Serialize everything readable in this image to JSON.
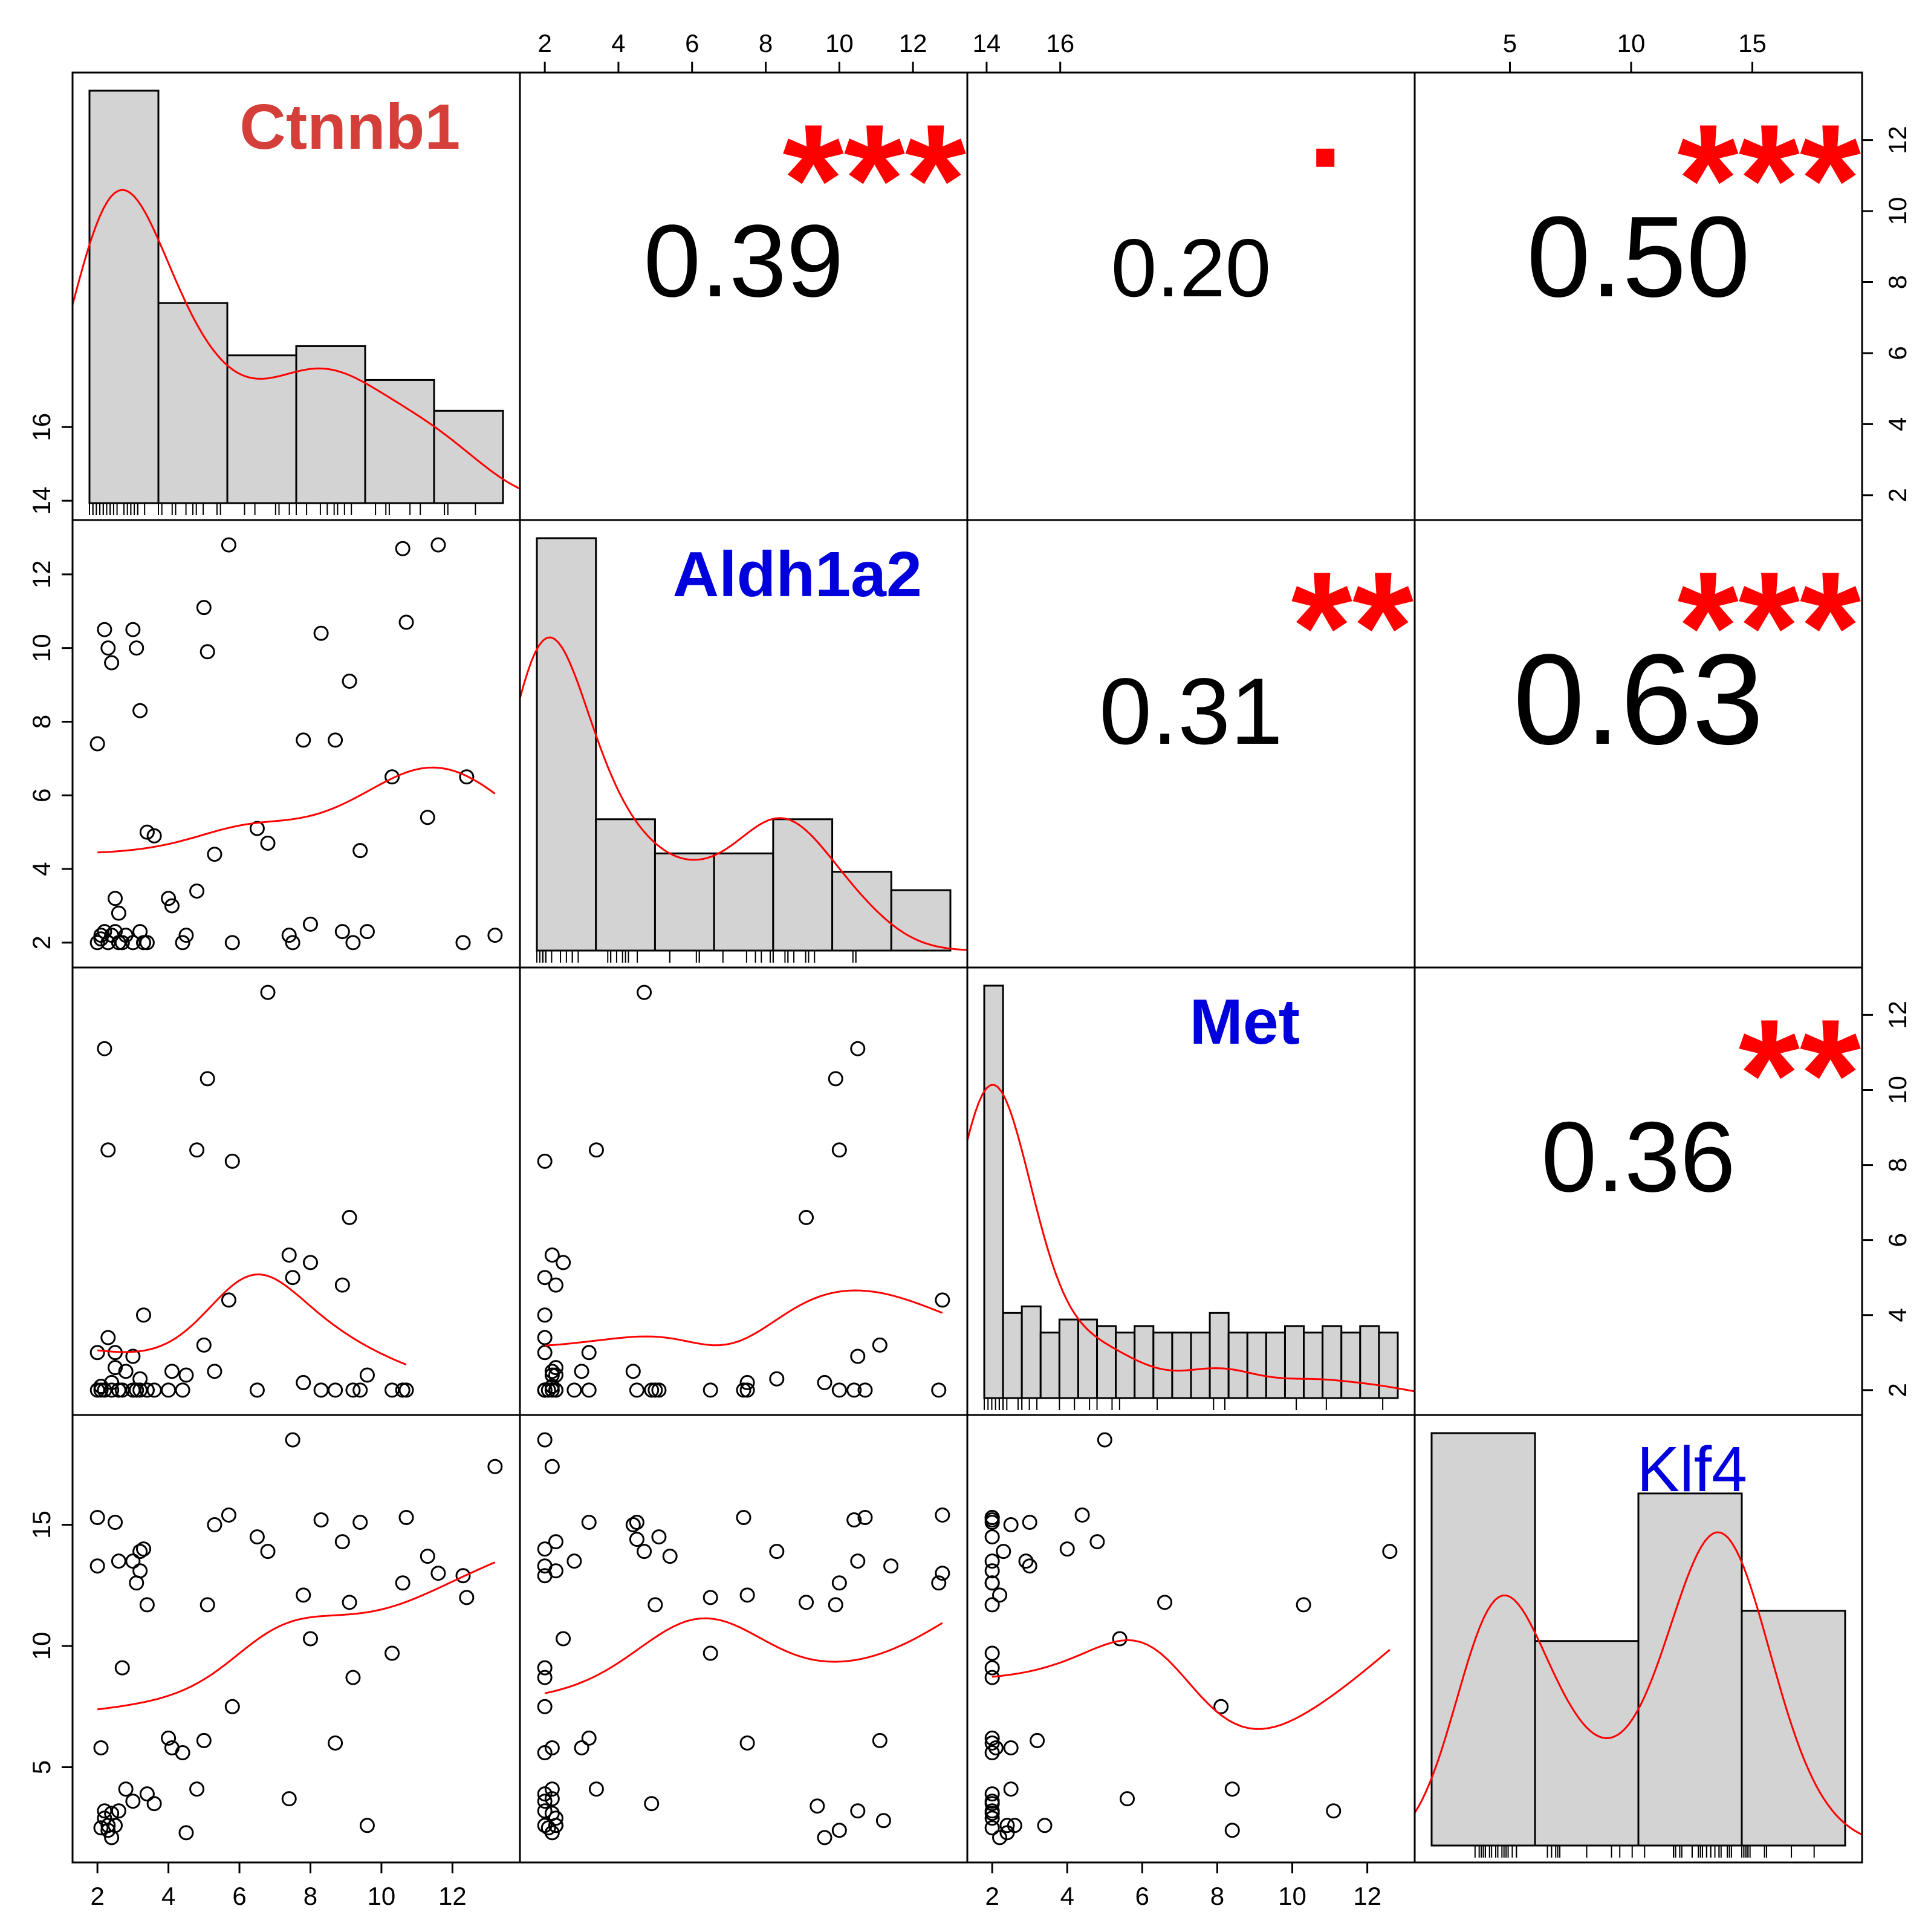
{
  "chart_data": {
    "type": "scatter-matrix",
    "variables": [
      {
        "name": "Ctnnb1",
        "color": "#d43f3a",
        "bold": true
      },
      {
        "name": "Aldh1a2",
        "color": "#0000dd",
        "bold": true
      },
      {
        "name": "Met",
        "color": "#0000dd",
        "bold": true
      },
      {
        "name": "Klf4",
        "color": "#0000dd",
        "bold": false
      }
    ],
    "axes": {
      "top": [
        {
          "col": 1,
          "ticks": [
            "2",
            "4",
            "6",
            "8",
            "10",
            "12",
            "14",
            "16"
          ]
        },
        {
          "col": 3,
          "ticks": [
            "5",
            "10",
            "15"
          ]
        }
      ],
      "bottom": [
        {
          "col": 0,
          "ticks": [
            "2",
            "4",
            "6",
            "8",
            "10",
            "12"
          ]
        },
        {
          "col": 2,
          "ticks": [
            "2",
            "4",
            "6",
            "8",
            "10",
            "12"
          ]
        }
      ],
      "left": [
        {
          "row": 1,
          "ticks": [
            "2",
            "4",
            "6",
            "8",
            "10",
            "12",
            "14",
            "16"
          ]
        },
        {
          "row": 3,
          "ticks": [
            "5",
            "10",
            "15"
          ]
        }
      ],
      "right": [
        {
          "row": 0,
          "ticks": [
            "2",
            "4",
            "6",
            "8",
            "10",
            "12"
          ]
        },
        {
          "row": 2,
          "ticks": [
            "2",
            "4",
            "6",
            "8",
            "10",
            "12"
          ]
        }
      ]
    },
    "correlations": [
      {
        "row": 0,
        "col": 1,
        "r": "0.39",
        "stars": "***"
      },
      {
        "row": 0,
        "col": 2,
        "r": "0.20",
        "stars": "."
      },
      {
        "row": 0,
        "col": 3,
        "r": "0.50",
        "stars": "***"
      },
      {
        "row": 1,
        "col": 2,
        "r": "0.31",
        "stars": "**"
      },
      {
        "row": 1,
        "col": 3,
        "r": "0.63",
        "stars": "***"
      },
      {
        "row": 2,
        "col": 3,
        "r": "0.36",
        "stars": "**"
      }
    ],
    "samples": {
      "Ctnnb1": [
        2.0,
        2.0,
        2.1,
        2.2,
        2.3,
        2.4,
        2.5,
        2.6,
        3.0,
        3.1,
        3.2,
        3.4,
        3.6,
        2.1,
        2.2,
        2.3,
        2.4,
        2.5,
        2.6,
        2.7,
        2.8,
        3.0,
        3.2,
        3.3,
        3.4,
        4.0,
        4.1,
        4.4,
        4.5,
        4.8,
        5.0,
        5.1,
        5.3,
        5.7,
        5.8,
        6.5,
        6.8,
        7.4,
        7.5,
        7.8,
        8.0,
        8.3,
        8.7,
        8.9,
        9.1,
        9.2,
        9.4,
        9.6,
        10.3,
        10.6,
        10.7,
        11.3,
        11.6,
        12.3,
        12.4,
        13.2
      ],
      "Aldh1a2": [
        7.4,
        2.0,
        2.2,
        10.5,
        10.0,
        9.6,
        2.3,
        2.0,
        10.5,
        10.0,
        8.3,
        5.0,
        4.9,
        2.1,
        2.3,
        2.0,
        2.2,
        3.2,
        2.8,
        2.0,
        2.2,
        2.0,
        2.3,
        2.0,
        2.0,
        3.2,
        3.0,
        2.0,
        2.2,
        3.4,
        11.1,
        9.9,
        4.4,
        12.8,
        2.0,
        5.1,
        4.7,
        2.2,
        2.0,
        7.5,
        2.5,
        10.4,
        7.5,
        2.3,
        9.1,
        2.0,
        4.5,
        2.3,
        6.5,
        12.7,
        10.7,
        5.4,
        12.8,
        2.0,
        6.5,
        2.2,
        9.4,
        11.2,
        4.5,
        11.4
      ],
      "Met": [
        2.0,
        3.0,
        2.1,
        11.1,
        8.4,
        2.2,
        2.6,
        2.0,
        2.9,
        2.0,
        2.3,
        2.0,
        2.0,
        2.0,
        2.0,
        3.4,
        2.0,
        3.0,
        2.0,
        2.0,
        2.5,
        2.0,
        2.0,
        4.0,
        2.0,
        2.0,
        2.5,
        2.0,
        2.4,
        8.4,
        3.2,
        10.3,
        2.5,
        4.4,
        8.1,
        2.0,
        12.6,
        5.6,
        5.0,
        2.2,
        5.4,
        2.0,
        2.0,
        4.8,
        6.6,
        2.0,
        2.0,
        2.4,
        2.0,
        2.0,
        2.0
      ],
      "Klf4": [
        15.3,
        13.3,
        5.8,
        3.2,
        2.4,
        2.1,
        2.6,
        3.2,
        13.5,
        12.6,
        13.9,
        11.7,
        3.5,
        2.5,
        2.9,
        2.6,
        3.1,
        15.1,
        13.5,
        9.1,
        4.1,
        3.6,
        13.1,
        14.0,
        3.9,
        6.2,
        5.8,
        5.6,
        2.3,
        4.1,
        6.1,
        11.7,
        15.0,
        15.4,
        7.5,
        14.5,
        13.9,
        3.7,
        18.5,
        12.1,
        10.3,
        15.2,
        6.0,
        14.3,
        11.8,
        8.7,
        15.1,
        2.6,
        9.7,
        12.6,
        15.3,
        13.7,
        13.0,
        12.9,
        12.0,
        17.4,
        3.4,
        2.8,
        14.4,
        13.3,
        16.1,
        15.2,
        16.2
      ]
    },
    "histograms": {
      "Ctnnb1": {
        "breaks": [
          2,
          4,
          6,
          8,
          10,
          12,
          14
        ],
        "counts": [
          13.4,
          6.5,
          4.8,
          5.1,
          4.0,
          3.0
        ]
      },
      "Aldh1a2": {
        "breaks": [
          2,
          4,
          6,
          8,
          10,
          12,
          14,
          16
        ],
        "counts": [
          15.7,
          5.0,
          3.7,
          3.7,
          5.0,
          3.0,
          2.3
        ]
      },
      "Met": {
        "breaks": [
          2,
          2.5,
          3,
          3.5,
          4,
          4.5,
          5,
          5.5,
          6,
          6.5,
          7,
          7.5,
          8,
          8.5,
          9,
          9.5,
          10,
          10.5,
          11,
          11.5,
          12,
          12.5,
          13
        ],
        "counts": [
          12.6,
          2.6,
          2.8,
          2.0,
          2.4,
          2.4,
          2.2,
          2.0,
          2.2,
          2.0,
          2.0,
          2.0,
          2.6,
          2.0,
          2.0,
          2.0,
          2.2,
          2.0,
          2.2,
          2.0,
          2.2,
          2.0
        ]
      },
      "Klf4": {
        "breaks": [
          0,
          5,
          10,
          15,
          20
        ],
        "counts": [
          12.3,
          6.1,
          10.5,
          7.0
        ]
      }
    }
  }
}
